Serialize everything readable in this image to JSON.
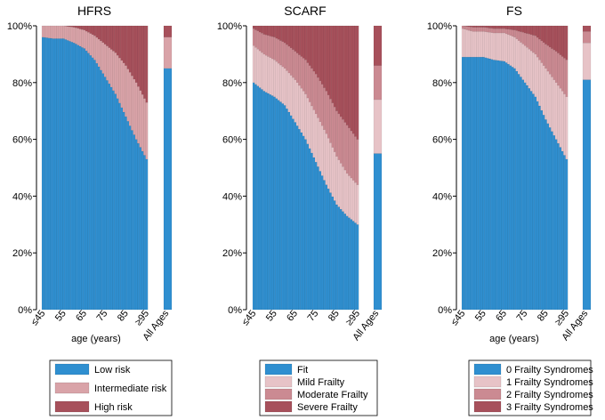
{
  "chart_data": [
    {
      "type": "bar",
      "stacked": true,
      "title": "HFRS",
      "xlabel": "age (years)",
      "ylabel": "",
      "ylim": [
        0,
        100
      ],
      "yticks": [
        "0%",
        "20%",
        "40%",
        "60%",
        "80%",
        "100%"
      ],
      "xticks": [
        "≤45",
        "55",
        "65",
        "75",
        "85",
        "≥95"
      ],
      "all_label": "All Ages",
      "colors": [
        "#2f8fd0",
        "#d9a3a8",
        "#a7505b"
      ],
      "series": [
        {
          "name": "Low risk",
          "anchors": [
            [
              45,
              96
            ],
            [
              50,
              95.5
            ],
            [
              55,
              95.5
            ],
            [
              60,
              94
            ],
            [
              65,
              92
            ],
            [
              70,
              88
            ],
            [
              75,
              82
            ],
            [
              80,
              76
            ],
            [
              85,
              68
            ],
            [
              90,
              60
            ],
            [
              95,
              53
            ]
          ],
          "all": 85
        },
        {
          "name": "Intermediate risk",
          "anchors": [
            [
              45,
              4
            ],
            [
              50,
              4.5
            ],
            [
              55,
              4.5
            ],
            [
              60,
              5.5
            ],
            [
              65,
              6.5
            ],
            [
              70,
              8.5
            ],
            [
              75,
              11.5
            ],
            [
              80,
              14.5
            ],
            [
              85,
              18
            ],
            [
              90,
              20
            ],
            [
              95,
              20
            ]
          ],
          "all": 11
        },
        {
          "name": "High risk",
          "anchors": [
            [
              45,
              0
            ],
            [
              50,
              0
            ],
            [
              55,
              0
            ],
            [
              60,
              0.5
            ],
            [
              65,
              1.5
            ],
            [
              70,
              3.5
            ],
            [
              75,
              6.5
            ],
            [
              80,
              9.5
            ],
            [
              85,
              14
            ],
            [
              90,
              20
            ],
            [
              95,
              27
            ]
          ],
          "all": 4
        }
      ],
      "legend": [
        "Low risk",
        "Intermediate risk",
        "High risk"
      ]
    },
    {
      "type": "bar",
      "stacked": true,
      "title": "SCARF",
      "xlabel": "",
      "ylabel": "",
      "ylim": [
        0,
        100
      ],
      "yticks": [
        "0%",
        "20%",
        "40%",
        "60%",
        "80%",
        "100%"
      ],
      "xticks": [
        "≤45",
        "55",
        "65",
        "75",
        "85",
        "≥95"
      ],
      "all_label": "All Ages",
      "colors": [
        "#2f8fd0",
        "#e7c3c7",
        "#cb8a92",
        "#a7505b"
      ],
      "series": [
        {
          "name": "Fit",
          "anchors": [
            [
              45,
              80
            ],
            [
              50,
              77
            ],
            [
              55,
              75
            ],
            [
              60,
              72
            ],
            [
              65,
              66
            ],
            [
              70,
              60
            ],
            [
              75,
              52
            ],
            [
              80,
              44
            ],
            [
              85,
              37
            ],
            [
              90,
              33
            ],
            [
              95,
              30
            ]
          ],
          "all": 55
        },
        {
          "name": "Mild Frailty",
          "anchors": [
            [
              45,
              13
            ],
            [
              50,
              13
            ],
            [
              55,
              13
            ],
            [
              60,
              13
            ],
            [
              65,
              15
            ],
            [
              70,
              16
            ],
            [
              75,
              17
            ],
            [
              80,
              18
            ],
            [
              85,
              17
            ],
            [
              90,
              15
            ],
            [
              95,
              14
            ]
          ],
          "all": 19
        },
        {
          "name": "Moderate Frailty",
          "anchors": [
            [
              45,
              6
            ],
            [
              50,
              7
            ],
            [
              55,
              8
            ],
            [
              60,
              9
            ],
            [
              65,
              10
            ],
            [
              70,
              12
            ],
            [
              75,
              14
            ],
            [
              80,
              15
            ],
            [
              85,
              16
            ],
            [
              90,
              17
            ],
            [
              95,
              16
            ]
          ],
          "all": 12
        },
        {
          "name": "Severe Frailty",
          "anchors": [
            [
              45,
              1
            ],
            [
              50,
              3
            ],
            [
              55,
              4
            ],
            [
              60,
              6
            ],
            [
              65,
              9
            ],
            [
              70,
              12
            ],
            [
              75,
              17
            ],
            [
              80,
              23
            ],
            [
              85,
              30
            ],
            [
              90,
              35
            ],
            [
              95,
              40
            ]
          ],
          "all": 14
        }
      ],
      "legend": [
        "Fit",
        "Mild Frailty",
        "Moderate Frailty",
        "Severe Frailty"
      ]
    },
    {
      "type": "bar",
      "stacked": true,
      "title": "FS",
      "xlabel": "age (years)",
      "ylabel": "",
      "ylim": [
        0,
        100
      ],
      "yticks": [
        "0%",
        "20%",
        "40%",
        "60%",
        "80%",
        "100%"
      ],
      "xticks": [
        "≤45",
        "55",
        "65",
        "75",
        "85",
        "≥95"
      ],
      "all_label": "All Ages",
      "colors": [
        "#2f8fd0",
        "#e7c3c7",
        "#cb8a92",
        "#a7505b"
      ],
      "series": [
        {
          "name": "0 Frailty Syndromes",
          "anchors": [
            [
              45,
              89
            ],
            [
              50,
              89
            ],
            [
              55,
              89
            ],
            [
              60,
              88
            ],
            [
              65,
              87.5
            ],
            [
              70,
              85
            ],
            [
              75,
              80
            ],
            [
              80,
              75
            ],
            [
              85,
              67
            ],
            [
              90,
              60
            ],
            [
              95,
              53
            ]
          ],
          "all": 81
        },
        {
          "name": "1 Frailty Syndromes",
          "anchors": [
            [
              45,
              10
            ],
            [
              50,
              9
            ],
            [
              55,
              9
            ],
            [
              60,
              9.5
            ],
            [
              65,
              10
            ],
            [
              70,
              11
            ],
            [
              75,
              13
            ],
            [
              80,
              15
            ],
            [
              85,
              18
            ],
            [
              90,
              20
            ],
            [
              95,
              22
            ]
          ],
          "all": 13
        },
        {
          "name": "2 Frailty Syndromes",
          "anchors": [
            [
              45,
              1
            ],
            [
              50,
              1.5
            ],
            [
              55,
              1.5
            ],
            [
              60,
              1.5
            ],
            [
              65,
              1.5
            ],
            [
              70,
              2.5
            ],
            [
              75,
              4.5
            ],
            [
              80,
              6.5
            ],
            [
              85,
              8.5
            ],
            [
              90,
              11
            ],
            [
              95,
              13
            ]
          ],
          "all": 4
        },
        {
          "name": "3 Frailty Syndromes",
          "anchors": [
            [
              45,
              0
            ],
            [
              50,
              0.5
            ],
            [
              55,
              0.5
            ],
            [
              60,
              1
            ],
            [
              65,
              1
            ],
            [
              70,
              1.5
            ],
            [
              75,
              2.5
            ],
            [
              80,
              3.5
            ],
            [
              85,
              6.5
            ],
            [
              90,
              9
            ],
            [
              95,
              12
            ]
          ],
          "all": 2
        }
      ],
      "legend": [
        "0 Frailty Syndromes",
        "1 Frailty Syndromes",
        "2 Frailty Syndromes",
        "3 Frailty Syndromes"
      ]
    }
  ]
}
